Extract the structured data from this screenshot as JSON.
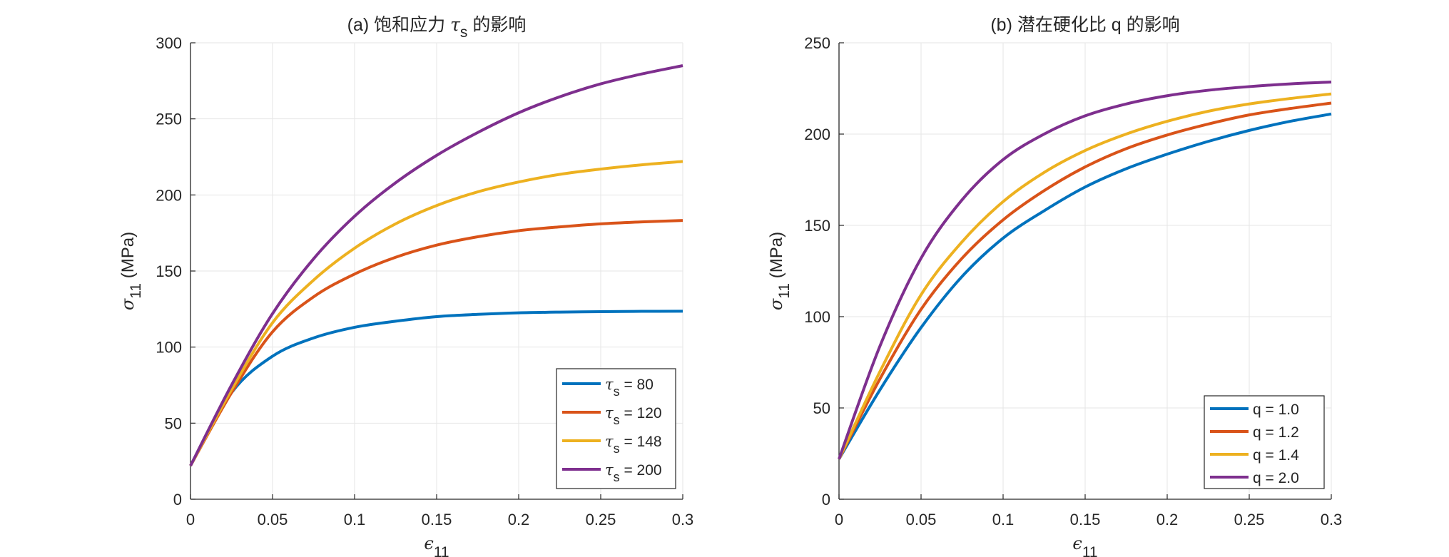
{
  "figure": {
    "background": "#ffffff",
    "axis_color": "#262626",
    "grid_color": "#e6e6e6",
    "series_colors": [
      "#0072bd",
      "#d95319",
      "#edb120",
      "#7e2f8e"
    ]
  },
  "chart_data": [
    {
      "type": "line",
      "title": "(a) 饱和应力 τs 的影响",
      "title_parts": {
        "prefix": "(a) 饱和应力 ",
        "symbol": "τ",
        "subscript": "s",
        "suffix": " 的影响"
      },
      "xlabel": {
        "symbol": "ϵ",
        "subscript": "11"
      },
      "ylabel": {
        "symbol": "σ",
        "subscript": "11",
        "unit": " (MPa)"
      },
      "xlim": [
        0,
        0.3
      ],
      "ylim": [
        0,
        300
      ],
      "xticks": [
        0,
        0.05,
        0.1,
        0.15,
        0.2,
        0.25,
        0.3
      ],
      "yticks": [
        0,
        50,
        100,
        150,
        200,
        250,
        300
      ],
      "xtick_labels": [
        "0",
        "0.05",
        "0.1",
        "0.15",
        "0.2",
        "0.25",
        "0.3"
      ],
      "ytick_labels": [
        "0",
        "50",
        "100",
        "150",
        "200",
        "250",
        "300"
      ],
      "grid": true,
      "legend_position": "bottom-right",
      "x": [
        0,
        0.025,
        0.05,
        0.075,
        0.1,
        0.125,
        0.15,
        0.175,
        0.2,
        0.225,
        0.25,
        0.275,
        0.3
      ],
      "series": [
        {
          "name": "τs = 80",
          "symbol": "τ",
          "subscript": "s",
          "value_text": " = 80",
          "values": [
            22,
            70,
            94,
            106,
            113,
            117,
            120,
            121.5,
            122.5,
            123,
            123.3,
            123.5,
            123.6
          ]
        },
        {
          "name": "τs = 120",
          "symbol": "τ",
          "subscript": "s",
          "value_text": " = 120",
          "values": [
            22,
            70,
            110,
            133,
            148,
            159,
            167,
            172.5,
            176.5,
            179,
            181,
            182.3,
            183.2
          ]
        },
        {
          "name": "τs = 148",
          "symbol": "τ",
          "subscript": "s",
          "value_text": " = 148",
          "values": [
            22,
            72,
            116,
            144,
            165,
            181,
            193,
            202,
            208.5,
            213.5,
            217,
            219.8,
            222
          ]
        },
        {
          "name": "τs = 200",
          "symbol": "τ",
          "subscript": "s",
          "value_text": " = 200",
          "values": [
            22,
            75,
            122,
            158,
            186,
            208,
            226,
            241,
            254,
            264.5,
            273,
            279.5,
            285
          ]
        }
      ]
    },
    {
      "type": "line",
      "title": "(b) 潜在硬化比 q 的影响",
      "title_parts": {
        "prefix": "(b) 潜在硬化比 q 的影响",
        "symbol": "",
        "subscript": "",
        "suffix": ""
      },
      "xlabel": {
        "symbol": "ϵ",
        "subscript": "11"
      },
      "ylabel": {
        "symbol": "σ",
        "subscript": "11",
        "unit": " (MPa)"
      },
      "xlim": [
        0,
        0.3
      ],
      "ylim": [
        0,
        250
      ],
      "xticks": [
        0,
        0.05,
        0.1,
        0.15,
        0.2,
        0.25,
        0.3
      ],
      "yticks": [
        0,
        50,
        100,
        150,
        200,
        250
      ],
      "xtick_labels": [
        "0",
        "0.05",
        "0.1",
        "0.15",
        "0.2",
        "0.25",
        "0.3"
      ],
      "ytick_labels": [
        "0",
        "50",
        "100",
        "150",
        "200",
        "250"
      ],
      "grid": true,
      "legend_position": "bottom-right",
      "x": [
        0,
        0.025,
        0.05,
        0.075,
        0.1,
        0.125,
        0.15,
        0.175,
        0.2,
        0.225,
        0.25,
        0.275,
        0.3
      ],
      "series": [
        {
          "name": "q = 1.0",
          "symbol": "",
          "subscript": "",
          "value_text": "q = 1.0",
          "values": [
            22,
            60,
            94,
            122,
            143,
            158,
            171,
            181,
            189,
            196,
            202,
            207,
            211
          ]
        },
        {
          "name": "q = 1.2",
          "symbol": "",
          "subscript": "",
          "value_text": "q = 1.2",
          "values": [
            22,
            66,
            104,
            132,
            153,
            169,
            182,
            192,
            199.5,
            205.5,
            210.5,
            214,
            217
          ]
        },
        {
          "name": "q = 1.4",
          "symbol": "",
          "subscript": "",
          "value_text": "q = 1.4",
          "values": [
            22,
            70,
            112,
            141,
            163,
            179,
            191,
            200,
            207,
            212.5,
            216.5,
            219.5,
            222
          ]
        },
        {
          "name": "q = 2.0",
          "symbol": "",
          "subscript": "",
          "value_text": "q = 2.0",
          "values": [
            22,
            84,
            132,
            164,
            186,
            200,
            210,
            216.5,
            221,
            224,
            226,
            227.5,
            228.5
          ]
        }
      ]
    }
  ]
}
